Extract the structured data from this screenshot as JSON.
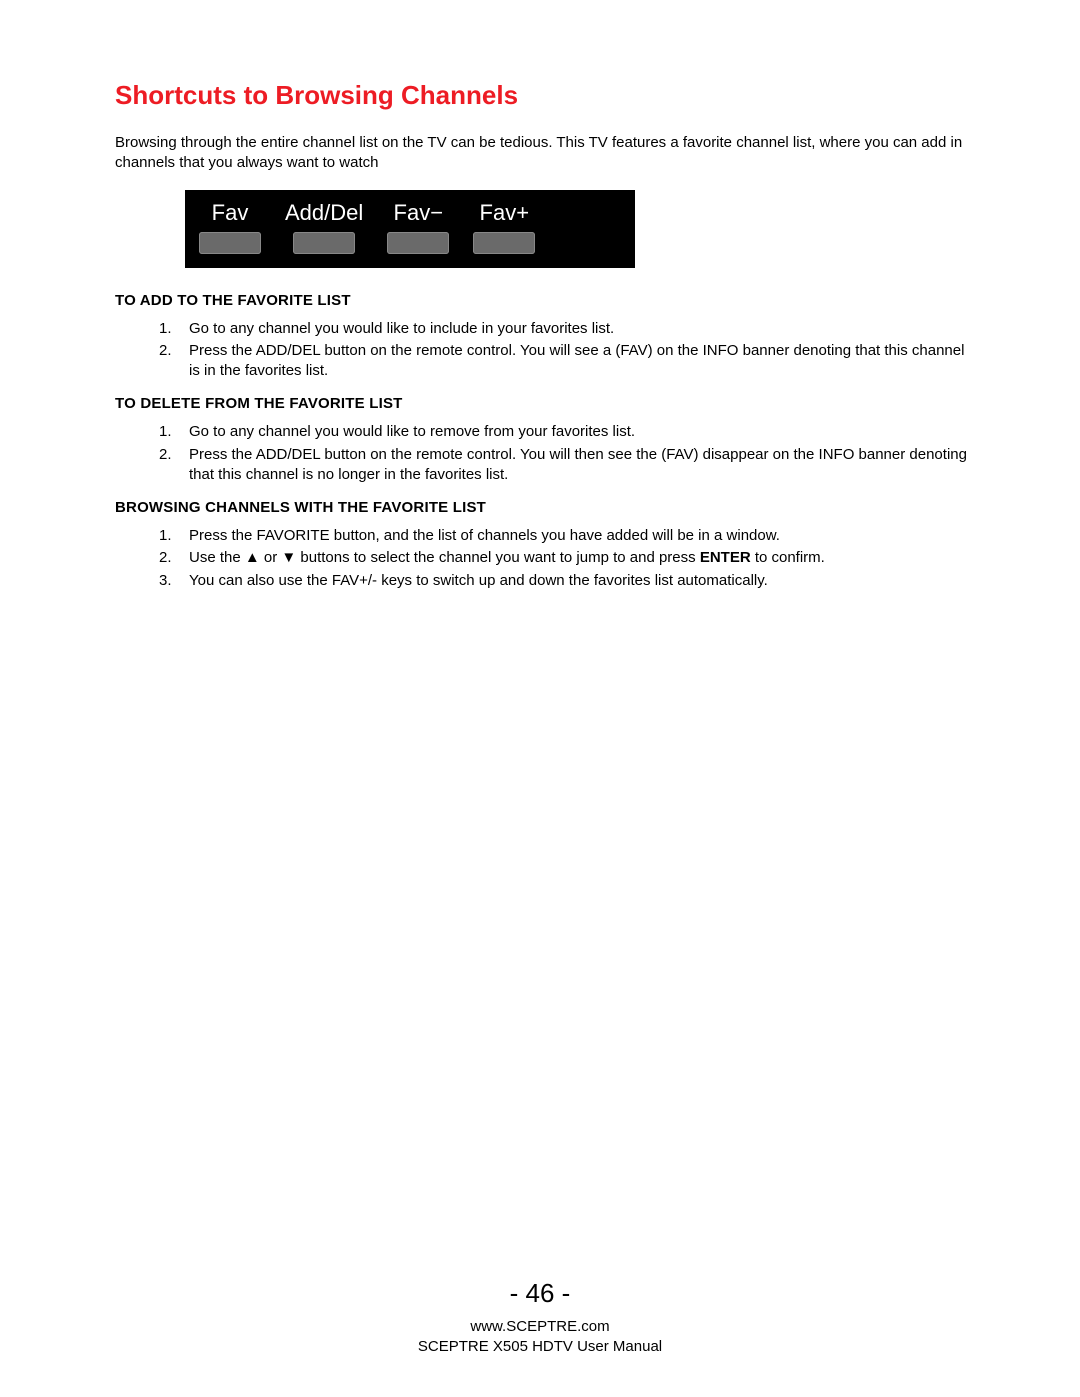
{
  "title": "Shortcuts to Browsing Channels",
  "title_color": "#ed1c24",
  "intro": "Browsing through the entire channel list on the TV can be tedious.  This TV features a favorite channel list, where you can add in channels that you always want to watch",
  "remote": {
    "background_color": "#000000",
    "label_color": "#ffffff",
    "key_color": "#6a6a6a",
    "buttons": [
      {
        "label": "Fav"
      },
      {
        "label": "Add/Del"
      },
      {
        "label": "Fav−"
      },
      {
        "label": "Fav+"
      }
    ]
  },
  "sections": [
    {
      "heading": "TO ADD TO THE FAVORITE LIST",
      "items": [
        "Go to any channel you would like to include in your favorites list.",
        "Press the ADD/DEL button on the remote control.  You will see a (FAV) on the INFO banner denoting that this channel is in the favorites list."
      ]
    },
    {
      "heading": "TO DELETE FROM THE FAVORITE LIST",
      "items": [
        "Go to any channel you would like to remove from your favorites list.",
        "Press the ADD/DEL button on the remote control.  You will then see the (FAV) disappear on the INFO banner denoting that this channel is no longer in the favorites list."
      ]
    },
    {
      "heading": "BROWSING CHANNELS WITH THE FAVORITE LIST",
      "items": [
        "Press the FAVORITE button, and the list of channels you have added will be in a window.",
        "Use the ▲ or ▼ buttons to select the channel you want to jump to and press ENTER to confirm.",
        "You can also use the FAV+/- keys to switch up and down the favorites list automatically."
      ],
      "bold_word_in_item_2": "ENTER"
    }
  ],
  "footer": {
    "page_number": "- 46 -",
    "url": "www.SCEPTRE.com",
    "manual": "SCEPTRE X505 HDTV User Manual"
  },
  "typography": {
    "title_fontsize": 26,
    "body_fontsize": 15,
    "heading_fontsize": 15,
    "page_num_fontsize": 26,
    "font_family": "Arial"
  },
  "page_bg": "#ffffff",
  "text_color": "#000000"
}
